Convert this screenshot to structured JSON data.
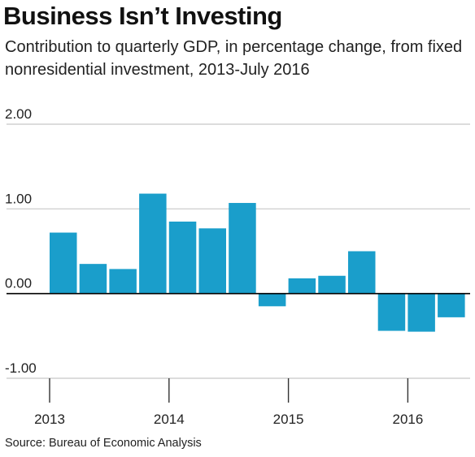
{
  "chart_data": {
    "type": "bar",
    "title": "Business Isn’t Investing",
    "subtitle": "Contribution to quarterly GDP, in percentage change, from fixed nonresidential investment, 2013-July 2016",
    "source": "Source: Bureau of Economic Analysis",
    "xlabel": "",
    "ylabel": "",
    "categories": [
      "2013 Q1",
      "2013 Q2",
      "2013 Q3",
      "2013 Q4",
      "2014 Q1",
      "2014 Q2",
      "2014 Q3",
      "2014 Q4",
      "2015 Q1",
      "2015 Q2",
      "2015 Q3",
      "2015 Q4",
      "2016 Q1",
      "2016 Q2"
    ],
    "values": [
      0.72,
      0.35,
      0.29,
      1.18,
      0.85,
      0.77,
      1.07,
      -0.15,
      0.18,
      0.21,
      0.5,
      -0.44,
      -0.45,
      -0.28
    ],
    "ylim": [
      -1.0,
      2.0
    ],
    "yticks": [
      2.0,
      1.0,
      0.0,
      -1.0
    ],
    "ytick_labels": [
      "2.00",
      "1.00",
      "0.00",
      "-1.00"
    ],
    "xtick_labels": [
      "2013",
      "2014",
      "2015",
      "2016"
    ],
    "bar_color": "#1a9ecb",
    "grid": true,
    "grid_color": "#c8c8c8",
    "zero_line_color": "#000000"
  }
}
